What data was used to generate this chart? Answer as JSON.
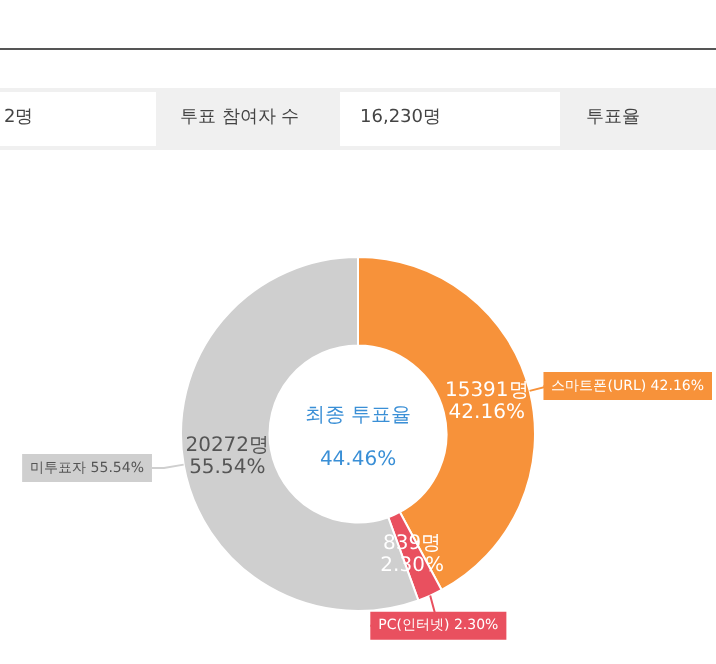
{
  "chart_data": {
    "type": "donut",
    "categories": [
      "스마트폰(URL) 42.16%",
      "PC(인터넷) 2.30%",
      "미투표자 55.54%"
    ],
    "values": [
      15391,
      839,
      20272
    ],
    "colors": [
      "#f7923a",
      "#e9505f",
      "#cfcfcf"
    ],
    "value_labels": [
      "15391명\n42.16%",
      "839명\n2.30%",
      "20272명\n55.54%"
    ],
    "annotations": [
      "2명",
      "투표 참여자 수",
      "16,230명",
      "투표율",
      "최종 투표율",
      "44.46%"
    ]
  }
}
